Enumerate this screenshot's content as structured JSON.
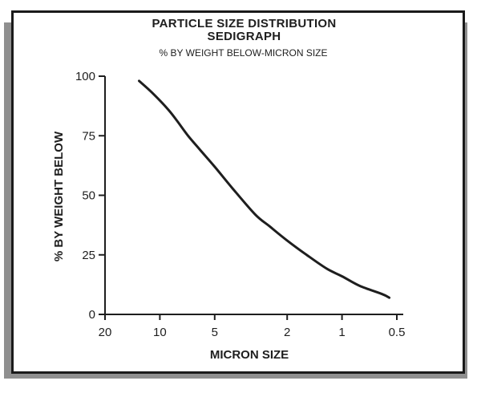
{
  "chart_data": {
    "type": "line",
    "title": "PARTICLE SIZE DISTRIBUTION",
    "title_line2": "SEDIGRAPH",
    "subtitle": "% BY WEIGHT BELOW-MICRON SIZE",
    "xlabel": "MICRON SIZE",
    "ylabel": "% BY WEIGHT BELOW",
    "x_scale": "log",
    "x_reversed": true,
    "xlim": [
      20,
      0.5
    ],
    "ylim": [
      0,
      100
    ],
    "x_ticks": [
      {
        "value": 20,
        "label": "20"
      },
      {
        "value": 10,
        "label": "10"
      },
      {
        "value": 5,
        "label": "5"
      },
      {
        "value": 2,
        "label": "2"
      },
      {
        "value": 1,
        "label": "1"
      },
      {
        "value": 0.5,
        "label": "0.5"
      }
    ],
    "y_ticks": [
      {
        "value": 0,
        "label": "0"
      },
      {
        "value": 25,
        "label": "25"
      },
      {
        "value": 50,
        "label": "50"
      },
      {
        "value": 75,
        "label": "75"
      },
      {
        "value": 100,
        "label": "100"
      }
    ],
    "grid": false,
    "series": [
      {
        "x": [
          13,
          11,
          9,
          8,
          7,
          6,
          5,
          4,
          3,
          2.5,
          2,
          1.5,
          1.2,
          1,
          0.8,
          0.6,
          0.55
        ],
        "y": [
          98,
          93,
          86,
          81,
          75,
          69,
          62,
          53,
          42,
          37,
          31,
          24,
          19,
          16,
          12,
          8.5,
          7
        ]
      }
    ],
    "colors": {
      "line": "#1e1e1e",
      "axis": "#1e1e1e",
      "frame": "#1a1a1a",
      "shadow": "#8f8f8f"
    }
  }
}
